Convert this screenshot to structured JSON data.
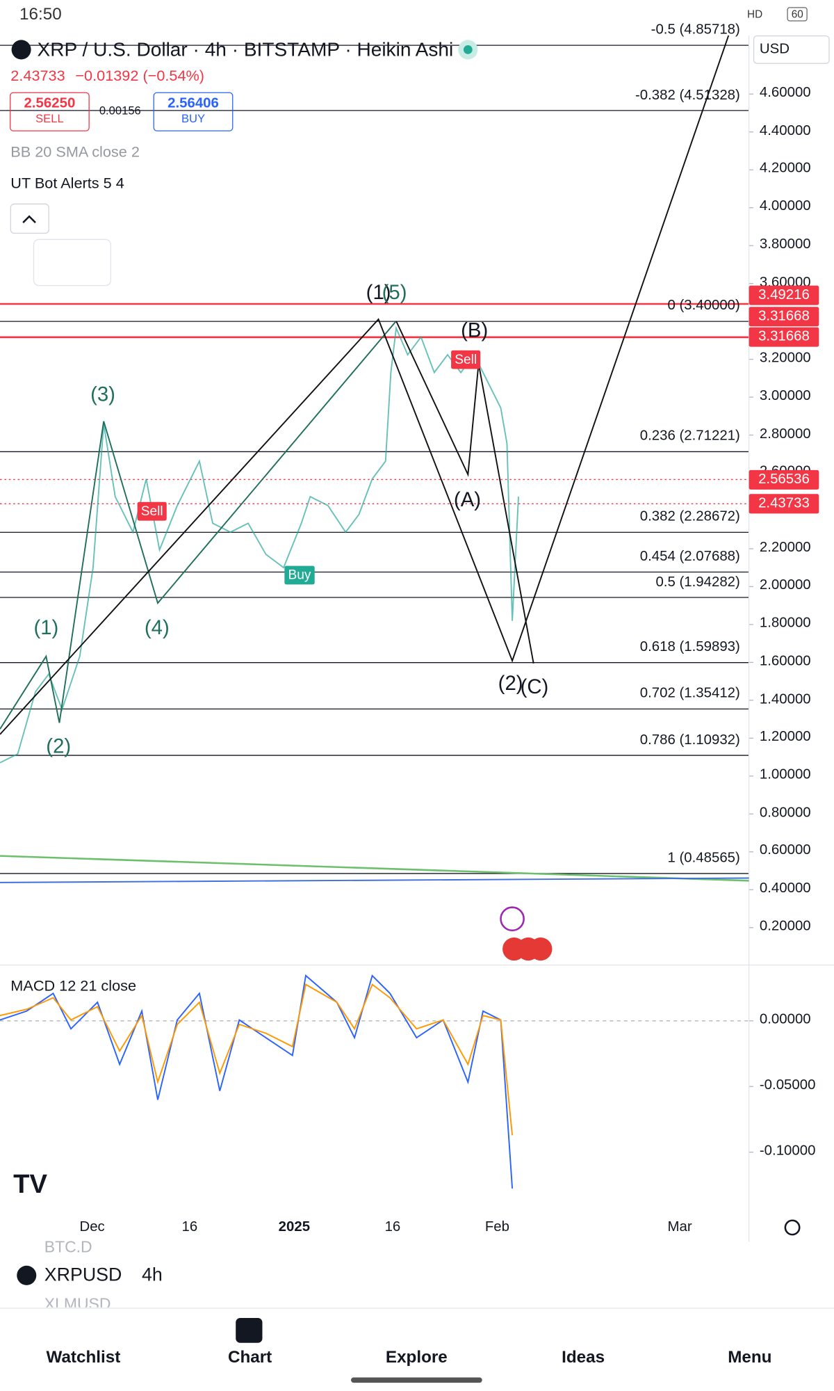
{
  "status_bar": {
    "time": "16:50",
    "network": "HD",
    "battery": "60"
  },
  "symbol": {
    "title": "XRP / U.S. Dollar · 4h · BITSTAMP · Heikin Ashi",
    "last": "2.43733",
    "change": "−0.01392 (−0.54%)",
    "sell_price": "2.56250",
    "sell_label": "SELL",
    "spread": "0.00156",
    "buy_price": "2.56406",
    "buy_label": "BUY",
    "currency": "USD"
  },
  "indicators": [
    "BB 20 SMA close 2",
    "UT Bot Alerts 5 4"
  ],
  "price_axis": {
    "ticks": [
      {
        "value": 4.6,
        "label": "4.60000"
      },
      {
        "value": 4.4,
        "label": "4.40000"
      },
      {
        "value": 4.2,
        "label": "4.20000"
      },
      {
        "value": 4,
        "label": "4.00000"
      },
      {
        "value": 3.8,
        "label": "3.80000"
      },
      {
        "value": 3.6,
        "label": "3.60000"
      },
      {
        "value": 3.2,
        "label": "3.20000"
      },
      {
        "value": 3,
        "label": "3.00000"
      },
      {
        "value": 2.8,
        "label": "2.80000"
      },
      {
        "value": 2.6,
        "label": "2.60000"
      },
      {
        "value": 2.2,
        "label": "2.20000"
      },
      {
        "value": 2,
        "label": "2.00000"
      },
      {
        "value": 1.8,
        "label": "1.80000"
      },
      {
        "value": 1.6,
        "label": "1.60000"
      },
      {
        "value": 1.4,
        "label": "1.40000"
      },
      {
        "value": 1.2,
        "label": "1.20000"
      },
      {
        "value": 1,
        "label": "1.00000"
      },
      {
        "value": 0.8,
        "label": "0.80000"
      },
      {
        "value": 0.6,
        "label": "0.60000"
      },
      {
        "value": 0.4,
        "label": "0.40000"
      },
      {
        "value": 0.2,
        "label": "0.20000"
      }
    ]
  },
  "fib_levels": [
    {
      "value": 4.85718,
      "label": "-0.5 (4.85718)"
    },
    {
      "value": 4.51328,
      "label": "-0.382 (4.51328)"
    },
    {
      "value": 3.4,
      "label": "0 (3.40000)"
    },
    {
      "value": 2.71221,
      "label": "0.236 (2.71221)"
    },
    {
      "value": 2.28672,
      "label": "0.382 (2.28672)"
    },
    {
      "value": 2.07688,
      "label": "0.454 (2.07688)"
    },
    {
      "value": 1.94282,
      "label": "0.5 (1.94282)"
    },
    {
      "value": 1.59893,
      "label": "0.618 (1.59893)"
    },
    {
      "value": 1.35412,
      "label": "0.702 (1.35412)"
    },
    {
      "value": 1.10932,
      "label": "0.786 (1.10932)"
    },
    {
      "value": 0.48565,
      "label": "1 (0.48565)"
    }
  ],
  "price_tags": [
    3.49216,
    3.31668,
    3.31668,
    2.56536,
    2.43733
  ],
  "wave_labels": [
    "(1)",
    "(2)",
    "(3)",
    "(4)",
    "(1)",
    "(5)",
    "(B)",
    "(A)",
    "(2)",
    "(C)"
  ],
  "signals": [
    "Sell",
    "Sell",
    "Buy"
  ],
  "macd": {
    "title": "MACD 12 21 close",
    "ticks": [
      {
        "value": 0,
        "label": "0.00000"
      },
      {
        "value": -0.05,
        "label": "-0.05000"
      },
      {
        "value": -0.1,
        "label": "-0.10000"
      }
    ]
  },
  "time_axis": [
    "Dec",
    "16",
    "2025",
    "16",
    "Feb",
    "Mar"
  ],
  "toolbar": {
    "symbol": "XRPUSD",
    "interval": "4h",
    "prev_symbol": "BTC.D",
    "next_symbol": "XLMUSD"
  },
  "nav": [
    "Watchlist",
    "Chart",
    "Explore",
    "Ideas",
    "Menu"
  ]
}
